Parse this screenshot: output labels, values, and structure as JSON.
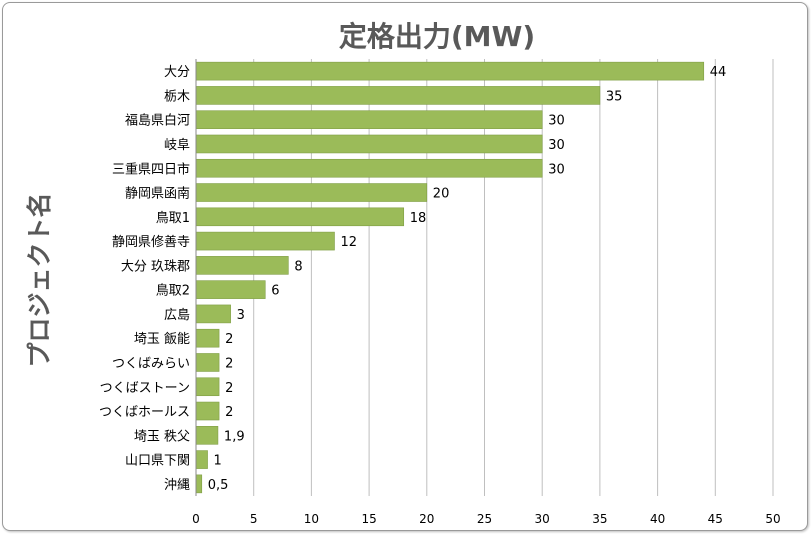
{
  "chart_data": {
    "type": "bar",
    "orientation": "horizontal",
    "title": "定格出力(MW)",
    "ylabel": "プロジェクト名",
    "xlabel": "",
    "categories": [
      "大分",
      "栃木",
      "福島県白河",
      "岐阜",
      "三重県四日市",
      "静岡県函南",
      "鳥取1",
      "静岡県修善寺",
      "大分 玖珠郡",
      "鳥取2",
      "広島",
      "埼玉 飯能",
      "つくばみらい",
      "つくばストーン",
      "つくばホールス",
      "埼玉 秩父",
      "山口県下関",
      "沖縄"
    ],
    "values": [
      44,
      35,
      30,
      30,
      30,
      20,
      18,
      12,
      8,
      6,
      3,
      2,
      2,
      2,
      2,
      1.9,
      1,
      0.5
    ],
    "data_labels": [
      "44",
      "35",
      "30",
      "30",
      "30",
      "20",
      "18",
      "12",
      "8",
      "6",
      "3",
      "2",
      "2",
      "2",
      "2",
      "1,9",
      "1",
      "0,5"
    ],
    "xlim": [
      0,
      50
    ],
    "xticks": [
      "0",
      "5",
      "10",
      "15",
      "20",
      "25",
      "30",
      "35",
      "40",
      "45",
      "50"
    ],
    "grid": true,
    "legend": "none",
    "bar_color": "#9bbb59"
  }
}
